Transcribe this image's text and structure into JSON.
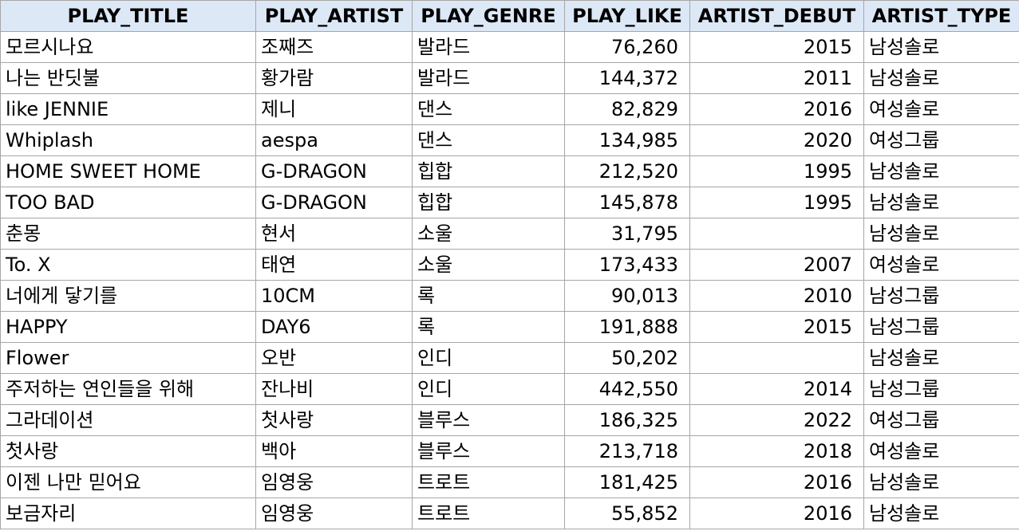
{
  "columns": [
    "PLAY_TITLE",
    "PLAY_ARTIST",
    "PLAY_GENRE",
    "PLAY_LIKE",
    "ARTIST_DEBUT",
    "ARTIST_TYPE"
  ],
  "rows": [
    [
      "모르시나요",
      "조째즈",
      "발라드",
      "76,260",
      "2015",
      "남성솔로"
    ],
    [
      "나는 반딧불",
      "황가람",
      "발라드",
      "144,372",
      "2011",
      "남성솔로"
    ],
    [
      "like JENNIE",
      "제니",
      "댄스",
      "82,829",
      "2016",
      "여성솔로"
    ],
    [
      "Whiplash",
      "aespa",
      "댄스",
      "134,985",
      "2020",
      "여성그룹"
    ],
    [
      "HOME SWEET HOME",
      "G-DRAGON",
      "힙합",
      "212,520",
      "1995",
      "남성솔로"
    ],
    [
      "TOO BAD",
      "G-DRAGON",
      "힙합",
      "145,878",
      "1995",
      "남성솔로"
    ],
    [
      "춘몽",
      "현서",
      "소울",
      "31,795",
      "",
      "남성솔로"
    ],
    [
      "To. X",
      "태연",
      "소울",
      "173,433",
      "2007",
      "여성솔로"
    ],
    [
      "너에게 닿기를",
      "10CM",
      "록",
      "90,013",
      "2010",
      "남성그룹"
    ],
    [
      "HAPPY",
      "DAY6",
      "록",
      "191,888",
      "2015",
      "남성그룹"
    ],
    [
      "Flower",
      "오반",
      "인디",
      "50,202",
      "",
      "남성솔로"
    ],
    [
      "주저하는 연인들을 위해",
      "잔나비",
      "인디",
      "442,550",
      "2014",
      "남성그룹"
    ],
    [
      "그라데이션",
      "첫사랑",
      "블루스",
      "186,325",
      "2022",
      "여성그룹"
    ],
    [
      "첫사랑",
      "백아",
      "블루스",
      "213,718",
      "2018",
      "여성솔로"
    ],
    [
      "이젠 나만 믿어요",
      "임영웅",
      "트로트",
      "181,425",
      "2016",
      "남성솔로"
    ],
    [
      "보금자리",
      "임영웅",
      "트로트",
      "55,852",
      "2016",
      "남성솔로"
    ]
  ]
}
